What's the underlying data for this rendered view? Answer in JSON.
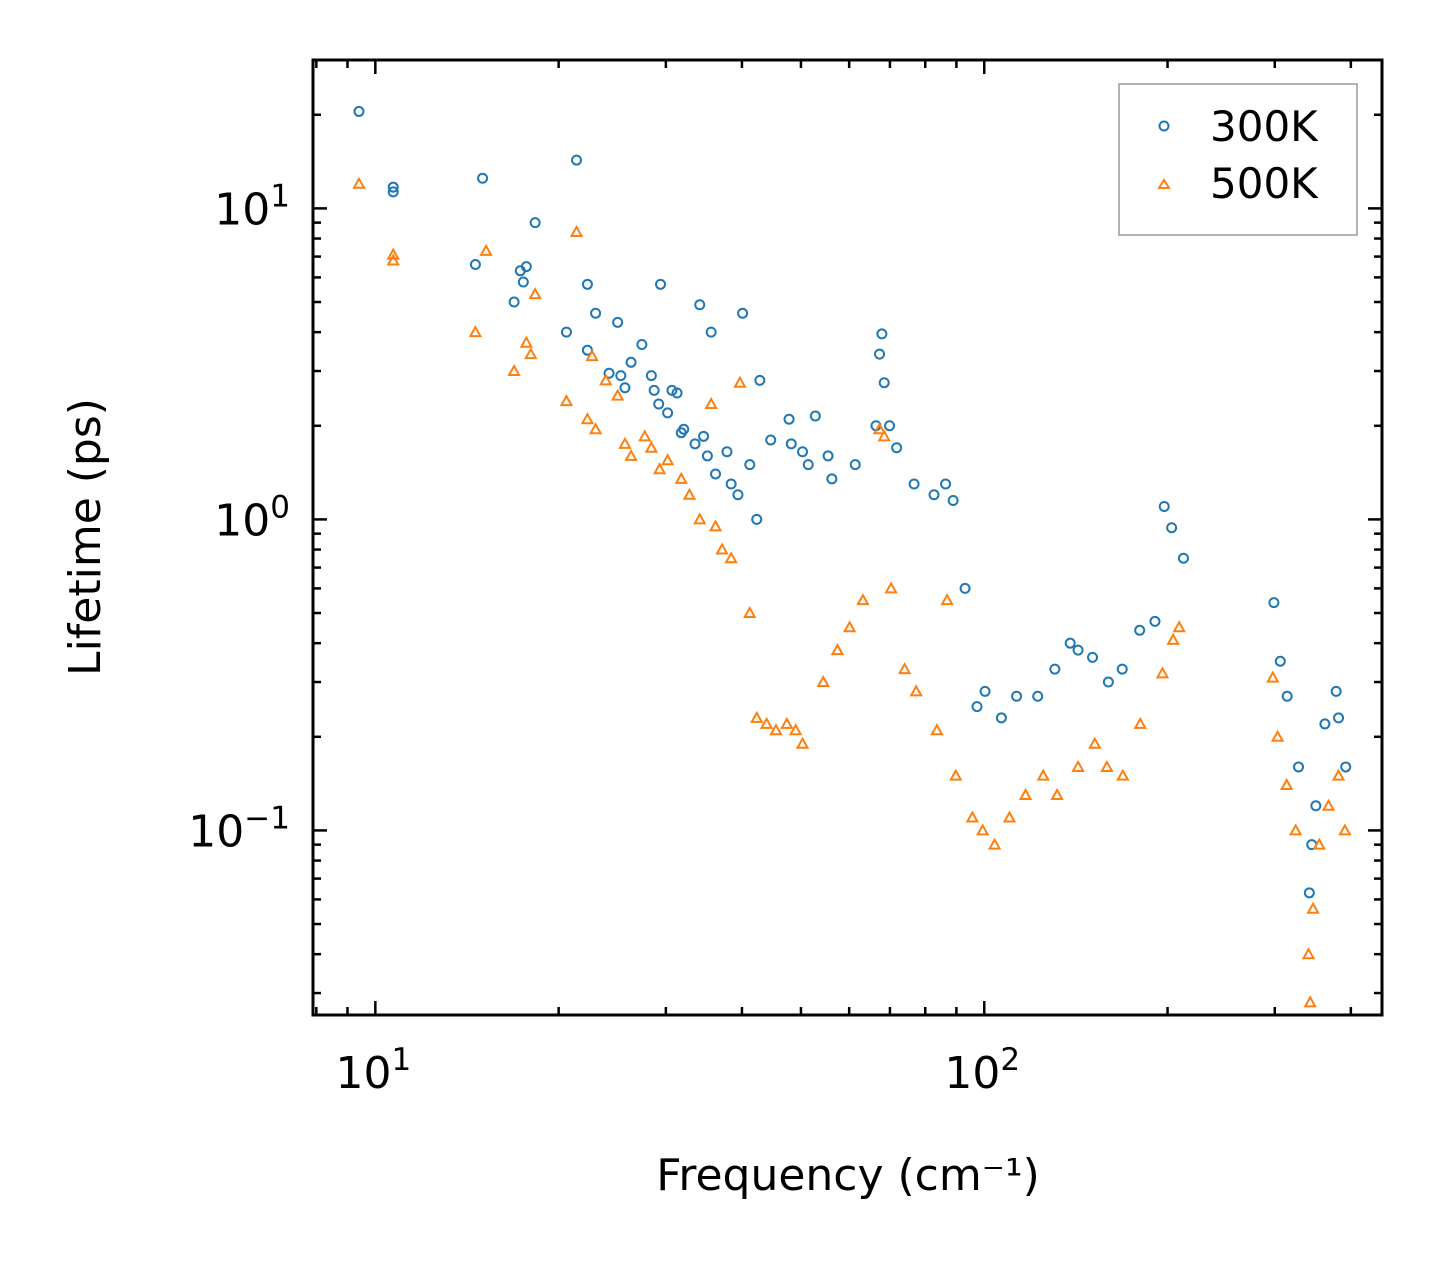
{
  "chart_data": {
    "type": "scatter",
    "xscale": "log",
    "yscale": "log",
    "xlabel": "Frequency (cm⁻¹)",
    "ylabel": "Lifetime (ps)",
    "xlim": [
      7.9,
      450
    ],
    "ylim": [
      0.0255,
      30
    ],
    "xticks": [
      {
        "value": 10,
        "base": "10",
        "exp": "1"
      },
      {
        "value": 100,
        "base": "10",
        "exp": "2"
      }
    ],
    "yticks": [
      {
        "value": 0.1,
        "base": "10",
        "exp": "−1"
      },
      {
        "value": 1,
        "base": "10",
        "exp": "0"
      },
      {
        "value": 10,
        "base": "10",
        "exp": "1"
      }
    ],
    "legend_position": "top-right",
    "series": [
      {
        "name": "300K",
        "marker": "circle",
        "color": "#1f77b4",
        "points": [
          [
            9.4,
            20.5
          ],
          [
            10.7,
            11.7
          ],
          [
            10.7,
            11.3
          ],
          [
            14.6,
            6.6
          ],
          [
            15.0,
            12.5
          ],
          [
            16.9,
            5.0
          ],
          [
            17.3,
            6.3
          ],
          [
            17.7,
            6.5
          ],
          [
            17.5,
            5.8
          ],
          [
            18.3,
            9.0
          ],
          [
            20.6,
            4.0
          ],
          [
            21.4,
            14.3
          ],
          [
            22.3,
            5.7
          ],
          [
            22.3,
            3.5
          ],
          [
            23.0,
            4.6
          ],
          [
            24.2,
            2.95
          ],
          [
            25.0,
            4.3
          ],
          [
            25.3,
            2.9
          ],
          [
            25.7,
            2.65
          ],
          [
            26.3,
            3.2
          ],
          [
            27.4,
            3.65
          ],
          [
            28.4,
            2.9
          ],
          [
            28.7,
            2.6
          ],
          [
            29.2,
            2.35
          ],
          [
            29.4,
            5.7
          ],
          [
            30.2,
            2.2
          ],
          [
            30.7,
            2.6
          ],
          [
            31.3,
            2.55
          ],
          [
            31.8,
            1.9
          ],
          [
            32.1,
            1.95
          ],
          [
            33.5,
            1.75
          ],
          [
            34.1,
            4.9
          ],
          [
            34.6,
            1.85
          ],
          [
            35.1,
            1.6
          ],
          [
            35.6,
            4.0
          ],
          [
            36.2,
            1.4
          ],
          [
            37.8,
            1.65
          ],
          [
            38.4,
            1.3
          ],
          [
            39.4,
            1.2
          ],
          [
            40.1,
            4.6
          ],
          [
            41.2,
            1.5
          ],
          [
            42.3,
            1.0
          ],
          [
            42.8,
            2.8
          ],
          [
            44.6,
            1.8
          ],
          [
            47.8,
            2.1
          ],
          [
            48.2,
            1.75
          ],
          [
            50.3,
            1.65
          ],
          [
            51.4,
            1.5
          ],
          [
            52.8,
            2.15
          ],
          [
            55.4,
            1.6
          ],
          [
            56.2,
            1.35
          ],
          [
            61.4,
            1.5
          ],
          [
            66.4,
            2.0
          ],
          [
            67.3,
            3.4
          ],
          [
            67.9,
            3.95
          ],
          [
            68.5,
            2.75
          ],
          [
            69.9,
            2.0
          ],
          [
            71.8,
            1.7
          ],
          [
            76.7,
            1.3
          ],
          [
            82.7,
            1.2
          ],
          [
            86.4,
            1.3
          ],
          [
            88.9,
            1.15
          ],
          [
            93.0,
            0.6
          ],
          [
            97.3,
            0.25
          ],
          [
            100.3,
            0.28
          ],
          [
            106.7,
            0.23
          ],
          [
            113.0,
            0.27
          ],
          [
            122.4,
            0.27
          ],
          [
            130.6,
            0.33
          ],
          [
            138.4,
            0.4
          ],
          [
            142.6,
            0.38
          ],
          [
            150.6,
            0.36
          ],
          [
            159.9,
            0.3
          ],
          [
            168.5,
            0.33
          ],
          [
            180.0,
            0.44
          ],
          [
            190.7,
            0.47
          ],
          [
            197.5,
            1.1
          ],
          [
            203.1,
            0.94
          ],
          [
            212.4,
            0.75
          ],
          [
            299.0,
            0.54
          ],
          [
            306.3,
            0.35
          ],
          [
            314.4,
            0.27
          ],
          [
            328.2,
            0.16
          ],
          [
            341.9,
            0.063
          ],
          [
            345.0,
            0.09
          ],
          [
            350.4,
            0.12
          ],
          [
            362.6,
            0.22
          ],
          [
            378.4,
            0.28
          ],
          [
            381.8,
            0.23
          ],
          [
            392.3,
            0.16
          ]
        ]
      },
      {
        "name": "500K",
        "marker": "triangle",
        "color": "#ff7f0e",
        "points": [
          [
            9.4,
            12.0
          ],
          [
            10.7,
            7.1
          ],
          [
            10.7,
            6.8
          ],
          [
            14.6,
            4.0
          ],
          [
            15.2,
            7.3
          ],
          [
            16.9,
            3.0
          ],
          [
            17.7,
            3.7
          ],
          [
            18.0,
            3.4
          ],
          [
            18.3,
            5.3
          ],
          [
            20.6,
            2.4
          ],
          [
            21.4,
            8.4
          ],
          [
            22.3,
            2.1
          ],
          [
            22.7,
            3.35
          ],
          [
            23.0,
            1.95
          ],
          [
            23.9,
            2.8
          ],
          [
            25.0,
            2.5
          ],
          [
            25.7,
            1.75
          ],
          [
            26.3,
            1.6
          ],
          [
            27.7,
            1.85
          ],
          [
            28.4,
            1.7
          ],
          [
            29.3,
            1.45
          ],
          [
            30.2,
            1.55
          ],
          [
            31.8,
            1.35
          ],
          [
            32.8,
            1.2
          ],
          [
            34.1,
            1.0
          ],
          [
            35.6,
            2.35
          ],
          [
            36.2,
            0.95
          ],
          [
            37.1,
            0.8
          ],
          [
            38.4,
            0.75
          ],
          [
            39.7,
            2.75
          ],
          [
            41.2,
            0.5
          ],
          [
            42.3,
            0.23
          ],
          [
            43.9,
            0.22
          ],
          [
            45.5,
            0.21
          ],
          [
            47.4,
            0.22
          ],
          [
            49.0,
            0.21
          ],
          [
            50.3,
            0.19
          ],
          [
            54.4,
            0.3
          ],
          [
            57.4,
            0.38
          ],
          [
            60.1,
            0.45
          ],
          [
            63.2,
            0.55
          ],
          [
            67.3,
            1.95
          ],
          [
            68.5,
            1.85
          ],
          [
            70.3,
            0.6
          ],
          [
            74.0,
            0.33
          ],
          [
            77.3,
            0.28
          ],
          [
            83.6,
            0.21
          ],
          [
            86.9,
            0.55
          ],
          [
            89.8,
            0.15
          ],
          [
            95.6,
            0.11
          ],
          [
            99.4,
            0.1
          ],
          [
            104.0,
            0.09
          ],
          [
            110.0,
            0.11
          ],
          [
            116.9,
            0.13
          ],
          [
            125.0,
            0.15
          ],
          [
            131.7,
            0.13
          ],
          [
            142.6,
            0.16
          ],
          [
            151.9,
            0.19
          ],
          [
            159.0,
            0.16
          ],
          [
            168.9,
            0.15
          ],
          [
            180.4,
            0.22
          ],
          [
            196.2,
            0.32
          ],
          [
            204.3,
            0.41
          ],
          [
            209.0,
            0.45
          ],
          [
            297.8,
            0.31
          ],
          [
            303.2,
            0.2
          ],
          [
            313.8,
            0.14
          ],
          [
            324.6,
            0.1
          ],
          [
            340.8,
            0.04
          ],
          [
            343.0,
            0.028
          ],
          [
            346.8,
            0.056
          ],
          [
            355.0,
            0.09
          ],
          [
            367.6,
            0.12
          ],
          [
            381.8,
            0.15
          ],
          [
            391.1,
            0.1
          ]
        ]
      }
    ]
  }
}
